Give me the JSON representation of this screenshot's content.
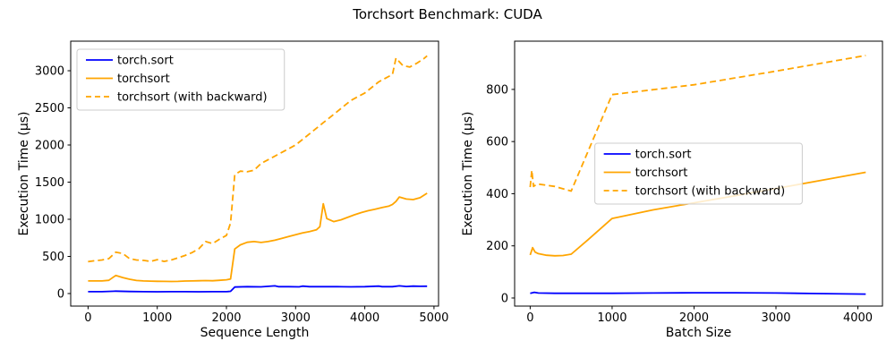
{
  "figure": {
    "title": "Torchsort Benchmark: CUDA",
    "background": "#ffffff",
    "accent_orange": "#ffa500",
    "accent_blue": "#0000ff"
  },
  "chart_data": [
    {
      "type": "line",
      "xlabel": "Sequence Length",
      "ylabel": "Execution Time (μs)",
      "xlim": [
        -251,
        5066
      ],
      "ylim": [
        -169,
        3398
      ],
      "xticks": [
        0,
        1000,
        2000,
        3000,
        4000,
        5000
      ],
      "yticks": [
        0,
        500,
        1000,
        1500,
        2000,
        2500,
        3000
      ],
      "grid": false,
      "legend_loc": "upper-left",
      "axes_rect": [
        79,
        46,
        411,
        296
      ],
      "series": [
        {
          "name": "torch.sort",
          "color": "#0000ff",
          "dash": false,
          "x": [
            0,
            200,
            400,
            600,
            800,
            1000,
            1200,
            1400,
            1600,
            1800,
            2000,
            2060,
            2120,
            2300,
            2500,
            2700,
            2750,
            2900,
            3050,
            3100,
            3200,
            3400,
            3600,
            3800,
            4000,
            4200,
            4250,
            4400,
            4500,
            4600,
            4700,
            4800,
            4900
          ],
          "y": [
            25,
            25,
            32,
            28,
            25,
            24,
            25,
            25,
            24,
            25,
            25,
            30,
            88,
            92,
            90,
            103,
            92,
            93,
            90,
            100,
            92,
            93,
            92,
            90,
            92,
            100,
            92,
            93,
            103,
            95,
            100,
            97,
            98
          ]
        },
        {
          "name": "torchsort",
          "color": "#ffa500",
          "dash": false,
          "x": [
            0,
            100,
            200,
            300,
            400,
            500,
            600,
            700,
            800,
            900,
            1000,
            1100,
            1200,
            1300,
            1400,
            1500,
            1600,
            1700,
            1800,
            1900,
            2000,
            2060,
            2120,
            2200,
            2300,
            2400,
            2500,
            2600,
            2700,
            2800,
            2900,
            3000,
            3100,
            3200,
            3300,
            3350,
            3400,
            3450,
            3550,
            3650,
            3750,
            3850,
            3950,
            4050,
            4150,
            4250,
            4350,
            4400,
            4450,
            4500,
            4600,
            4700,
            4800,
            4900
          ],
          "y": [
            170,
            170,
            170,
            178,
            243,
            215,
            192,
            176,
            170,
            167,
            165,
            164,
            162,
            164,
            168,
            170,
            172,
            175,
            172,
            178,
            185,
            195,
            600,
            655,
            690,
            700,
            688,
            700,
            718,
            742,
            768,
            793,
            815,
            835,
            858,
            900,
            1210,
            1010,
            968,
            990,
            1025,
            1060,
            1090,
            1115,
            1135,
            1158,
            1178,
            1200,
            1240,
            1300,
            1272,
            1265,
            1290,
            1350
          ]
        },
        {
          "name": "torchsort (with backward)",
          "color": "#ffa500",
          "dash": true,
          "x": [
            0,
            100,
            200,
            300,
            400,
            500,
            600,
            700,
            800,
            900,
            1000,
            1100,
            1200,
            1300,
            1400,
            1500,
            1600,
            1700,
            1800,
            1900,
            2000,
            2060,
            2120,
            2200,
            2300,
            2400,
            2500,
            2600,
            2800,
            3000,
            3200,
            3400,
            3600,
            3800,
            4000,
            4200,
            4300,
            4400,
            4450,
            4550,
            4650,
            4750,
            4850,
            4900
          ],
          "y": [
            430,
            442,
            452,
            470,
            557,
            540,
            470,
            452,
            447,
            432,
            457,
            432,
            452,
            480,
            512,
            550,
            602,
            700,
            672,
            732,
            782,
            950,
            1600,
            1648,
            1640,
            1660,
            1752,
            1800,
            1900,
            2000,
            2150,
            2300,
            2450,
            2600,
            2700,
            2850,
            2900,
            2950,
            3170,
            3070,
            3050,
            3100,
            3160,
            3200
          ]
        }
      ]
    },
    {
      "type": "line",
      "xlabel": "Batch Size",
      "ylabel": "Execution Time (μs)",
      "xlim": [
        -190,
        4300
      ],
      "ylim": [
        -31,
        985
      ],
      "xticks": [
        0,
        1000,
        2000,
        3000,
        4000
      ],
      "yticks": [
        0,
        200,
        400,
        600,
        800
      ],
      "grid": false,
      "legend_loc": "center",
      "axes_rect": [
        575,
        46,
        411,
        296
      ],
      "series": [
        {
          "name": "torch.sort",
          "color": "#0000ff",
          "dash": false,
          "x": [
            0,
            50,
            100,
            300,
            500,
            1000,
            1500,
            2000,
            2500,
            3000,
            3500,
            4096
          ],
          "y": [
            18,
            22,
            19,
            18,
            18,
            18,
            19,
            20,
            20,
            19,
            17,
            15
          ]
        },
        {
          "name": "torchsort",
          "color": "#ffa500",
          "dash": false,
          "x": [
            0,
            30,
            60,
            100,
            200,
            300,
            400,
            500,
            700,
            1000,
            1500,
            2000,
            2500,
            3000,
            3500,
            4096
          ],
          "y": [
            165,
            193,
            176,
            170,
            164,
            162,
            163,
            168,
            222,
            305,
            338,
            365,
            392,
            420,
            448,
            482
          ]
        },
        {
          "name": "torchsort (with backward)",
          "color": "#ffa500",
          "dash": true,
          "x": [
            0,
            20,
            40,
            60,
            100,
            300,
            500,
            1000,
            2000,
            3000,
            4096
          ],
          "y": [
            425,
            490,
            428,
            432,
            437,
            428,
            410,
            780,
            818,
            870,
            930
          ]
        }
      ]
    }
  ],
  "legend": {
    "entries": [
      "torch.sort",
      "torchsort",
      "torchsort (with backward)"
    ]
  }
}
